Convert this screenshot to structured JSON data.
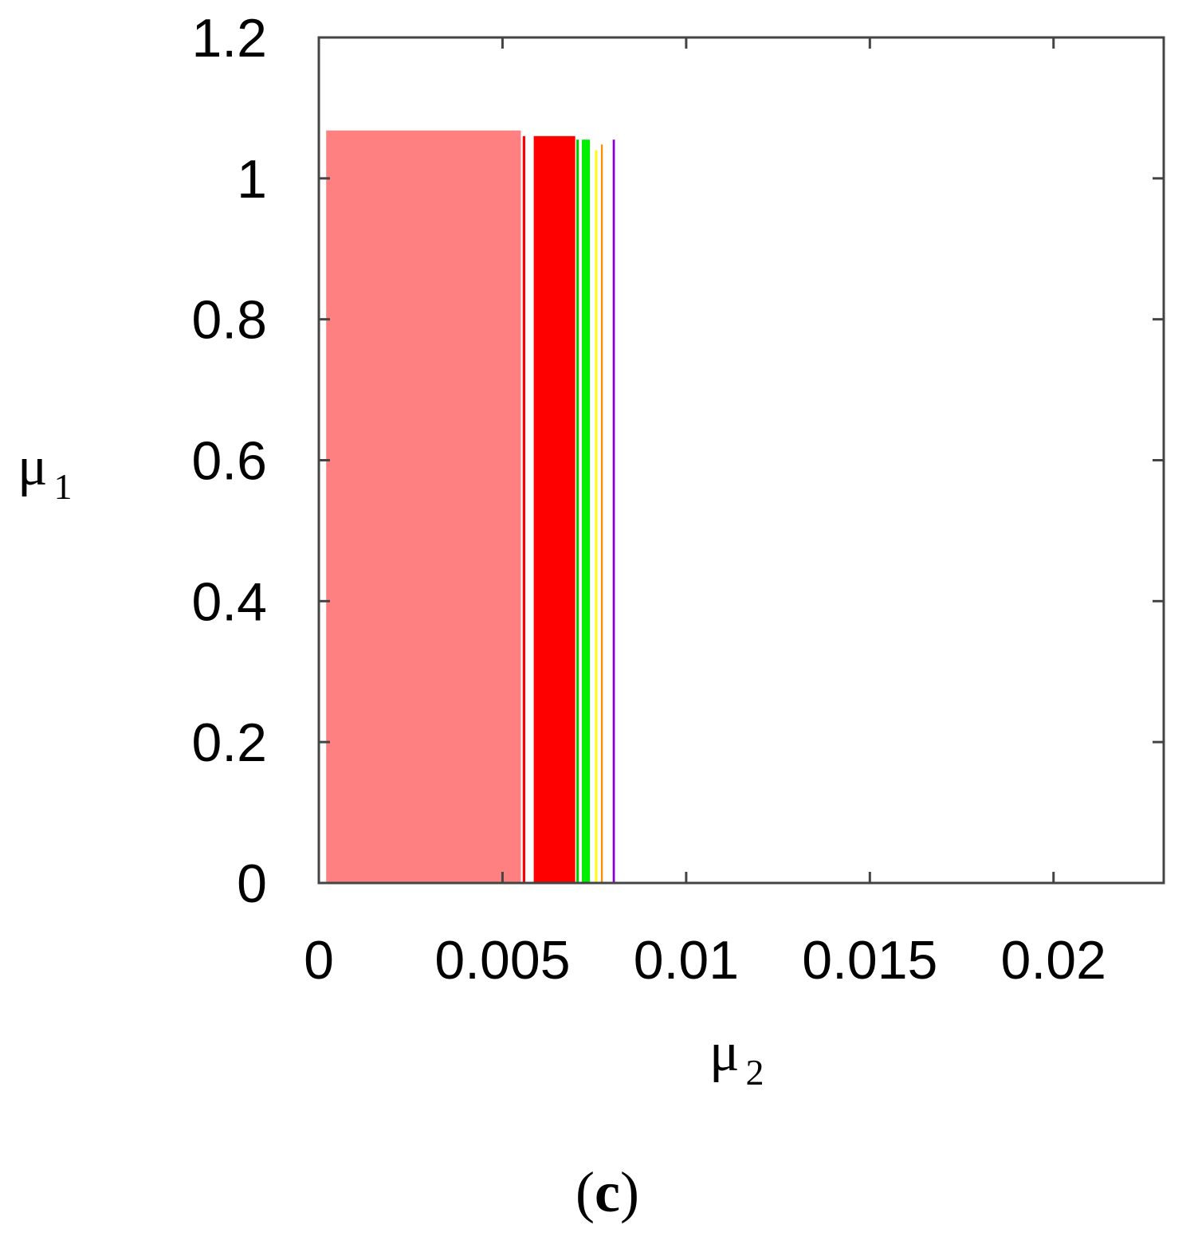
{
  "chart_data": {
    "type": "area",
    "panel_label": {
      "open": "(",
      "letter": "c",
      "close": ")"
    },
    "xlabel": {
      "symbol": "μ",
      "subscript": "2"
    },
    "ylabel": {
      "symbol": "μ",
      "subscript": "1"
    },
    "xlim": [
      0,
      0.023
    ],
    "ylim": [
      0,
      1.2
    ],
    "x_ticks": [
      {
        "value": 0,
        "label": "0"
      },
      {
        "value": 0.005,
        "label": "0.005"
      },
      {
        "value": 0.01,
        "label": "0.01"
      },
      {
        "value": 0.015,
        "label": "0.015"
      },
      {
        "value": 0.02,
        "label": "0.02"
      }
    ],
    "y_ticks": [
      {
        "value": 0,
        "label": "0"
      },
      {
        "value": 0.2,
        "label": "0.2"
      },
      {
        "value": 0.4,
        "label": "0.4"
      },
      {
        "value": 0.6,
        "label": "0.6"
      },
      {
        "value": 0.8,
        "label": "0.8"
      },
      {
        "value": 1,
        "label": "1"
      },
      {
        "value": 1.2,
        "label": "1.2"
      }
    ],
    "grid": false,
    "regions": [
      {
        "x0": 0.0002,
        "x1": 0.0055,
        "y_top": 1.068,
        "color": "#ff8080"
      },
      {
        "x0": 0.00555,
        "x1": 0.00562,
        "y_top": 1.06,
        "color": "#ff0000"
      },
      {
        "x0": 0.00585,
        "x1": 0.00698,
        "y_top": 1.06,
        "color": "#ff0000"
      },
      {
        "x0": 0.00701,
        "x1": 0.00708,
        "y_top": 1.055,
        "color": "#00cc00"
      },
      {
        "x0": 0.00716,
        "x1": 0.00738,
        "y_top": 1.055,
        "color": "#00ee00"
      },
      {
        "x0": 0.00752,
        "x1": 0.00758,
        "y_top": 1.04,
        "color": "#ffff00"
      },
      {
        "x0": 0.00768,
        "x1": 0.00773,
        "y_top": 1.048,
        "color": "#ff8c00"
      },
      {
        "x0": 0.008,
        "x1": 0.00806,
        "y_top": 1.055,
        "color": "#8800dd"
      }
    ]
  }
}
